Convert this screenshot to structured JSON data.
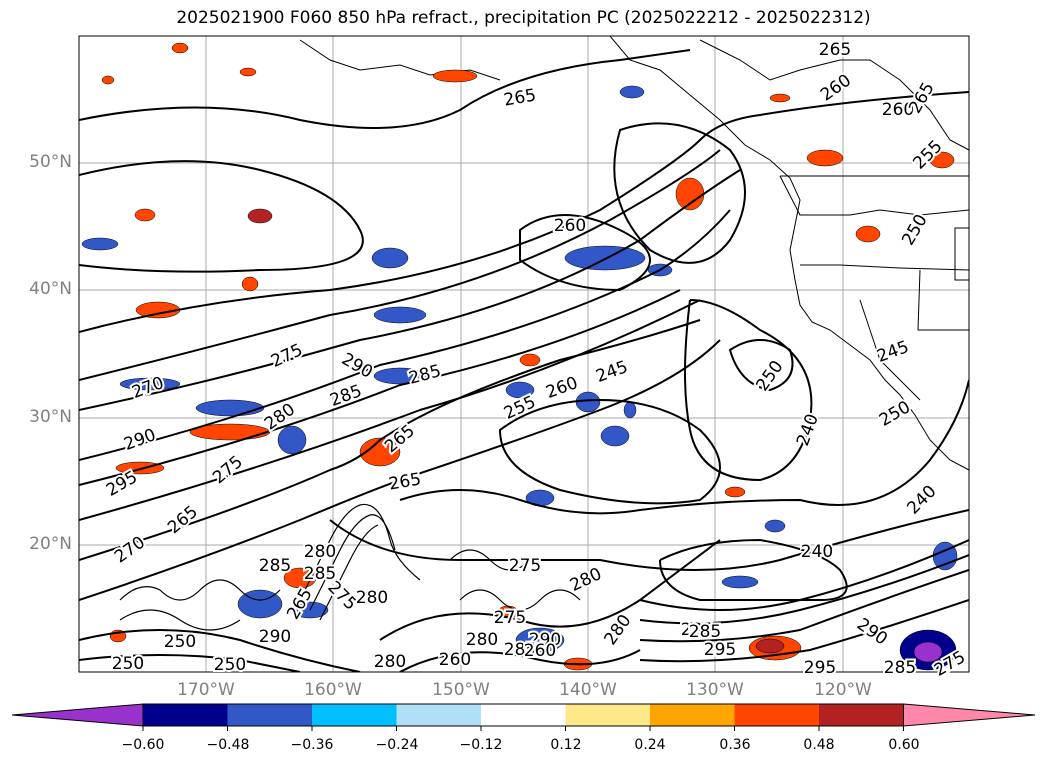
{
  "title": "2025021900 F060 850 hPa refract., precipitation PC (2025022212 - 2025022312)",
  "lat_labels": [
    "50°N",
    "40°N",
    "30°N",
    "20°N"
  ],
  "lon_labels": [
    "170°W",
    "160°W",
    "150°W",
    "140°W",
    "130°W",
    "120°W"
  ],
  "colorbar": {
    "ticks": [
      "−0.60",
      "−0.48",
      "−0.36",
      "−0.24",
      "−0.12",
      "0.12",
      "0.24",
      "0.36",
      "0.48",
      "0.60"
    ],
    "colors": [
      "#9932cc",
      "#00008b",
      "#3258c8",
      "#00bfff",
      "#b0e0f8",
      "#ffffff",
      "#ffe88a",
      "#ffa500",
      "#ff4500",
      "#b22222",
      "#ff88aa"
    ]
  },
  "contour_labels": [
    "265",
    "260",
    "260",
    "265",
    "265",
    "255",
    "260",
    "250",
    "275",
    "270",
    "290",
    "285",
    "285",
    "260",
    "245",
    "245",
    "280",
    "290",
    "265",
    "255",
    "250",
    "250",
    "240",
    "240",
    "240",
    "275",
    "280",
    "280",
    "265",
    "295",
    "275",
    "275",
    "270",
    "265",
    "285",
    "280",
    "285",
    "275",
    "265",
    "280",
    "250",
    "290",
    "280",
    "290",
    "280",
    "285",
    "285",
    "295",
    "295",
    "290",
    "285",
    "275",
    "250",
    "250",
    "260",
    "260",
    "285"
  ]
}
